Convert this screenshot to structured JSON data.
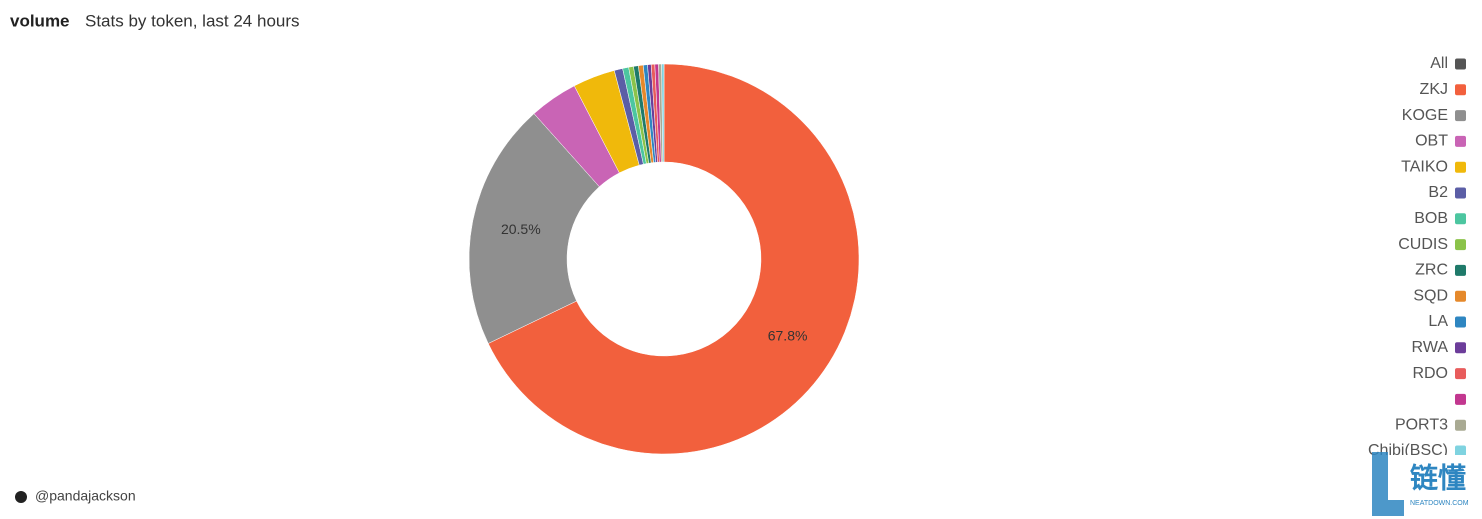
{
  "chart_data": {
    "type": "pie",
    "title": "volume",
    "subtitle": "Stats by token, last 24 hours",
    "categories": [
      "ZKJ",
      "KOGE",
      "OBT",
      "TAIKO",
      "B2",
      "BOB",
      "CUDIS",
      "ZRC",
      "SQD",
      "LA",
      "RWA",
      "RDO",
      null,
      "PORT3",
      "Chibi(BSC)"
    ],
    "values": [
      67.8,
      20.5,
      4.0,
      3.5,
      0.7,
      0.5,
      0.4,
      0.4,
      0.4,
      0.35,
      0.3,
      0.3,
      0.3,
      0.25,
      0.2
    ],
    "value_labels": [
      "67.8%",
      "20.5%",
      null,
      null,
      null,
      null,
      null,
      null,
      null,
      null,
      null,
      null,
      null,
      null,
      null
    ],
    "colors": [
      "#f2603d",
      "#8f8f8f",
      "#c964b5",
      "#f0b90b",
      "#5b5ea6",
      "#4cc6a0",
      "#8bc34a",
      "#1f7a6a",
      "#e5892b",
      "#2e86c1",
      "#6c3d9a",
      "#e85c5c",
      "#c2378f",
      "#a9aa93",
      "#7fd3e0"
    ],
    "legend_all": {
      "label": "All",
      "color": "#555555"
    },
    "legend": "right",
    "author": "@pandajackson",
    "watermark": {
      "text": "链懂",
      "subtext": "NEATDOWN.COM"
    }
  }
}
